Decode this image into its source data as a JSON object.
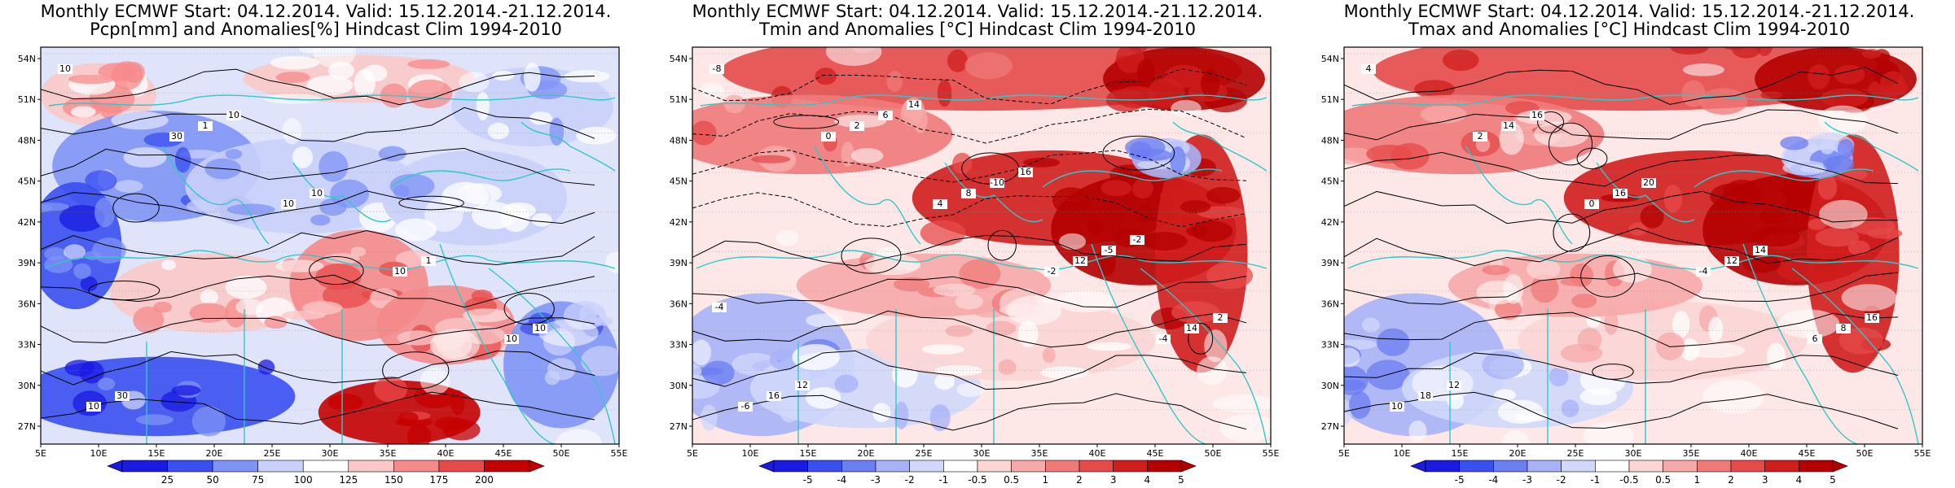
{
  "panels": [
    {
      "title_line1": "Monthly ECMWF Start: 04.12.2014. Valid: 15.12.2014.-21.12.2014.",
      "title_line2": "Pcpn[mm] and Anomalies[%] Hindcast Clim 1994-2010",
      "colorbar_labels": [
        "25",
        "50",
        "75",
        "100",
        "125",
        "150",
        "175",
        "200"
      ],
      "contour_labels": [
        "10",
        "30",
        "10",
        "10",
        "10",
        "10",
        "1",
        "10",
        "1",
        "10",
        "30",
        "10"
      ]
    },
    {
      "title_line1": "Monthly ECMWF Start: 04.12.2014. Valid: 15.12.2014.-21.12.2014.",
      "title_line2": "Tmin and Anomalies [°C] Hindcast Clim 1994-2010",
      "colorbar_labels": [
        "-5",
        "-4",
        "-3",
        "-2",
        "-1",
        "-0.5",
        "0.5",
        "1",
        "2",
        "3",
        "4",
        "5"
      ],
      "contour_labels": [
        "-8",
        "0",
        "4",
        "-2",
        "-4",
        "-6",
        "2",
        "8",
        "12",
        "14",
        "16",
        "6",
        "-10",
        "-5",
        "2",
        "12",
        "14",
        "16",
        "-2",
        "-4"
      ]
    },
    {
      "title_line1": "Monthly ECMWF Start: 04.12.2014. Valid: 15.12.2014.-21.12.2014.",
      "title_line2": "Tmax and Anomalies [°C] Hindcast Clim 1994-2010",
      "colorbar_labels": [
        "-5",
        "-4",
        "-3",
        "-2",
        "-1",
        "-0.5",
        "0.5",
        "1",
        "2",
        "3",
        "4",
        "5"
      ],
      "contour_labels": [
        "4",
        "2",
        "0",
        "-4",
        "6",
        "10",
        "14",
        "16",
        "12",
        "8",
        "18",
        "16",
        "20",
        "14",
        "16",
        "12"
      ]
    }
  ],
  "lat_labels": [
    "54N",
    "51N",
    "48N",
    "45N",
    "42N",
    "39N",
    "36N",
    "33N",
    "30N",
    "27N"
  ],
  "lon_labels": [
    "5E",
    "10E",
    "15E",
    "20E",
    "25E",
    "30E",
    "35E",
    "40E",
    "45E",
    "50E",
    "55E"
  ],
  "colors": {
    "precip_scale": [
      "#1a1ae0",
      "#3a4ff0",
      "#7f93f5",
      "#c9d0fa",
      "#ffffff",
      "#fbc8c8",
      "#f58a8a",
      "#e84a4a",
      "#c40000"
    ],
    "temp_scale": [
      "#1a1ae0",
      "#3a4ff0",
      "#6b7ef2",
      "#a7b2f7",
      "#d2d8fb",
      "#ffffff",
      "#fcd5d5",
      "#f7a9a9",
      "#f07a7a",
      "#e64a4a",
      "#d21d1d",
      "#b40000"
    ],
    "coastline": "#30c8c8",
    "contour": "#000000"
  }
}
